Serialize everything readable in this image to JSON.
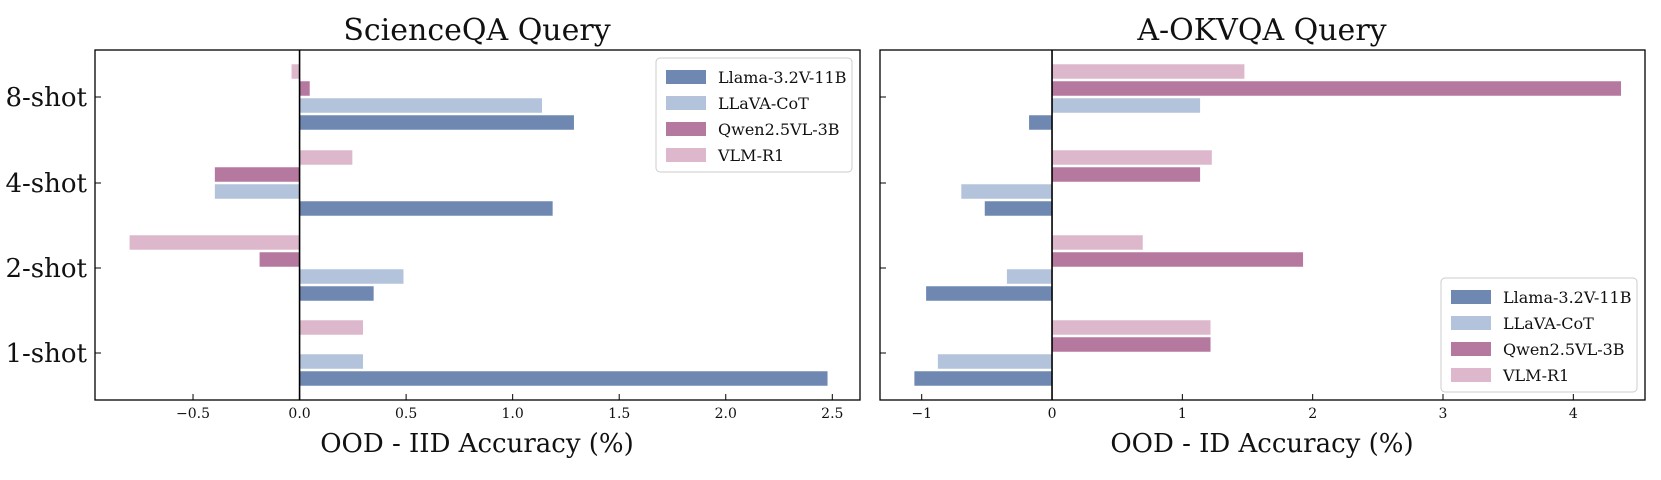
{
  "chart_data": [
    {
      "type": "bar",
      "orientation": "horizontal",
      "title": "ScienceQA Query",
      "xlabel": "OOD - IID Accuracy (%)",
      "ylabel": "",
      "categories": [
        "1-shot",
        "2-shot",
        "4-shot",
        "8-shot"
      ],
      "xlim": [
        -0.96,
        2.63
      ],
      "xticks": [
        -0.5,
        0.0,
        0.5,
        1.0,
        1.5,
        2.0,
        2.5
      ],
      "xtick_labels": [
        "−0.5",
        "0.0",
        "0.5",
        "1.0",
        "1.5",
        "2.0",
        "2.5"
      ],
      "legend_position": "top-right",
      "series": [
        {
          "name": "Llama-3.2V-11B",
          "values": [
            2.48,
            0.35,
            1.19,
            1.29
          ]
        },
        {
          "name": "LLaVA-CoT",
          "values": [
            0.3,
            0.49,
            -0.4,
            1.14
          ]
        },
        {
          "name": "Qwen2.5VL-3B",
          "values": [
            0.0,
            -0.19,
            -0.4,
            0.05
          ]
        },
        {
          "name": "VLM-R1",
          "values": [
            0.3,
            -0.8,
            0.25,
            -0.04
          ]
        }
      ]
    },
    {
      "type": "bar",
      "orientation": "horizontal",
      "title": "A-OKVQA Query",
      "xlabel": "OOD - ID Accuracy (%)",
      "ylabel": "",
      "categories": [
        "1-shot",
        "2-shot",
        "4-shot",
        "8-shot"
      ],
      "xlim": [
        -1.32,
        4.55
      ],
      "xticks": [
        -1,
        0,
        1,
        2,
        3,
        4
      ],
      "xtick_labels": [
        "−1",
        "0",
        "1",
        "2",
        "3",
        "4"
      ],
      "legend_position": "bottom-right",
      "series": [
        {
          "name": "Llama-3.2V-11B",
          "values": [
            -1.06,
            -0.97,
            -0.52,
            -0.18
          ]
        },
        {
          "name": "LLaVA-CoT",
          "values": [
            -0.88,
            -0.35,
            -0.7,
            1.14
          ]
        },
        {
          "name": "Qwen2.5VL-3B",
          "values": [
            1.22,
            1.93,
            1.14,
            4.37
          ]
        },
        {
          "name": "VLM-R1",
          "values": [
            1.22,
            0.7,
            1.23,
            1.48
          ]
        }
      ]
    }
  ],
  "colors": {
    "Llama-3.2V-11B": "#6f88b2",
    "LLaVA-CoT": "#b4c3dc",
    "Qwen2.5VL-3B": "#b5789f",
    "VLM-R1": "#ddb8cc"
  }
}
